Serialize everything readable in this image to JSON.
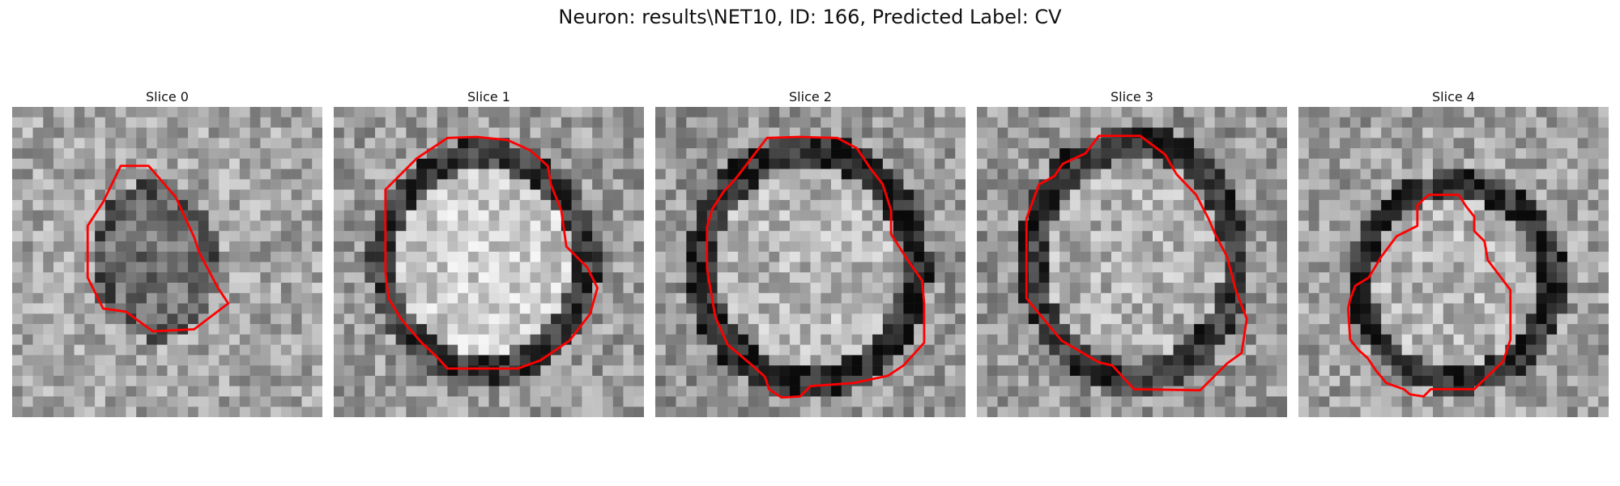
{
  "figure": {
    "title": "Neuron: results\\NET10, ID: 166, Predicted Label: CV",
    "contour_color": "#ff0000"
  },
  "slices": [
    {
      "title": "Slice 0"
    },
    {
      "title": "Slice 1"
    },
    {
      "title": "Slice 2"
    },
    {
      "title": "Slice 3"
    },
    {
      "title": "Slice 4"
    }
  ]
}
